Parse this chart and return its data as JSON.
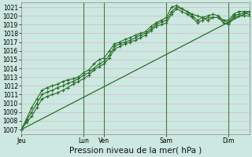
{
  "background_color": "#cce8e0",
  "grid_color": "#d4b8d4",
  "line_color": "#2a6e2a",
  "ylim_min": 1006.5,
  "ylim_max": 1021.5,
  "yticks": [
    1007,
    1008,
    1009,
    1010,
    1011,
    1012,
    1013,
    1014,
    1015,
    1016,
    1017,
    1018,
    1019,
    1020,
    1021
  ],
  "xlabel": "Pression niveau de la mer( hPa )",
  "xlabel_fontsize": 7.5,
  "tick_fontsize": 5.5,
  "day_labels": [
    "Jeu",
    "Lun",
    "Ven",
    "Sam",
    "Dim"
  ],
  "day_positions": [
    0,
    72,
    96,
    168,
    240
  ],
  "vline_positions": [
    72,
    96,
    168,
    240
  ],
  "total_hours": 264,
  "trend_line": {
    "x": [
      0,
      264
    ],
    "y": [
      1007.0,
      1020.5
    ]
  },
  "series1": {
    "x": [
      0,
      6,
      12,
      18,
      24,
      30,
      36,
      42,
      48,
      54,
      60,
      66,
      72,
      78,
      84,
      90,
      96,
      102,
      108,
      114,
      120,
      126,
      132,
      138,
      144,
      150,
      156,
      162,
      168,
      174,
      180,
      186,
      192,
      198,
      204,
      210,
      216,
      222,
      228,
      234,
      240,
      246,
      252,
      258,
      264
    ],
    "y": [
      1007.0,
      1008.0,
      1009.0,
      1010.0,
      1011.0,
      1011.3,
      1011.5,
      1011.8,
      1012.0,
      1012.3,
      1012.5,
      1012.8,
      1013.2,
      1013.5,
      1014.0,
      1014.5,
      1014.8,
      1015.5,
      1016.5,
      1016.8,
      1017.0,
      1017.2,
      1017.5,
      1017.8,
      1018.0,
      1018.5,
      1019.0,
      1019.3,
      1019.5,
      1020.5,
      1021.0,
      1020.8,
      1020.5,
      1020.0,
      1019.5,
      1019.8,
      1020.0,
      1020.2,
      1020.0,
      1019.5,
      1019.2,
      1020.0,
      1020.2,
      1020.3,
      1020.2
    ]
  },
  "series2": {
    "x": [
      0,
      6,
      12,
      18,
      24,
      30,
      36,
      42,
      48,
      54,
      60,
      66,
      72,
      78,
      84,
      90,
      96,
      102,
      108,
      114,
      120,
      126,
      132,
      138,
      144,
      150,
      156,
      162,
      168,
      174,
      180,
      186,
      192,
      198,
      204,
      210,
      216,
      222,
      228,
      234,
      240,
      246,
      252,
      258,
      264
    ],
    "y": [
      1007.0,
      1008.2,
      1009.5,
      1010.5,
      1011.5,
      1011.8,
      1012.0,
      1012.2,
      1012.5,
      1012.7,
      1012.8,
      1013.0,
      1013.5,
      1013.8,
      1014.5,
      1015.0,
      1015.2,
      1016.0,
      1016.8,
      1017.0,
      1017.3,
      1017.5,
      1017.8,
      1018.0,
      1018.2,
      1018.8,
      1019.2,
      1019.5,
      1019.8,
      1021.0,
      1021.2,
      1020.8,
      1020.5,
      1020.2,
      1020.0,
      1019.8,
      1019.5,
      1019.8,
      1019.8,
      1019.5,
      1019.5,
      1020.2,
      1020.5,
      1020.5,
      1020.5
    ]
  },
  "series3": {
    "x": [
      0,
      6,
      12,
      18,
      24,
      30,
      36,
      42,
      48,
      54,
      60,
      66,
      72,
      78,
      84,
      90,
      96,
      102,
      108,
      114,
      120,
      126,
      132,
      138,
      144,
      150,
      156,
      162,
      168,
      174,
      180,
      186,
      192,
      198,
      204,
      210,
      216,
      222,
      228,
      234,
      240,
      246,
      252,
      258,
      264
    ],
    "y": [
      1007.0,
      1007.8,
      1008.5,
      1009.5,
      1010.5,
      1010.8,
      1011.0,
      1011.2,
      1011.5,
      1011.8,
      1012.2,
      1012.5,
      1012.8,
      1013.2,
      1013.8,
      1014.2,
      1014.5,
      1015.2,
      1016.2,
      1016.5,
      1016.8,
      1017.0,
      1017.2,
      1017.5,
      1017.8,
      1018.3,
      1018.8,
      1019.0,
      1019.2,
      1020.2,
      1020.8,
      1020.5,
      1020.2,
      1019.8,
      1019.2,
      1019.5,
      1019.8,
      1019.8,
      1019.8,
      1019.2,
      1019.0,
      1019.8,
      1020.0,
      1020.0,
      1020.0
    ]
  }
}
